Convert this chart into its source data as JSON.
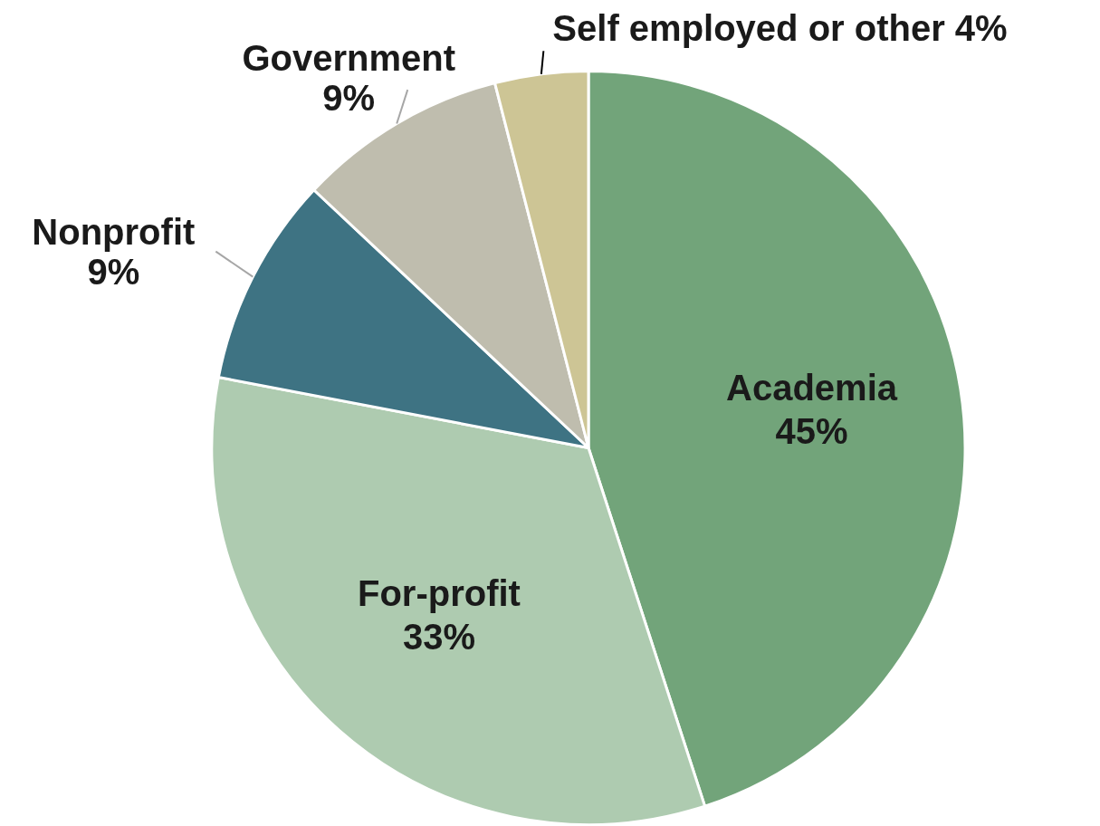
{
  "chart_data": {
    "type": "pie",
    "categories": [
      "Academia",
      "For-profit",
      "Nonprofit",
      "Government",
      "Self employed or other"
    ],
    "values": [
      45,
      33,
      9,
      9,
      4
    ],
    "value_labels": [
      "45%",
      "33%",
      "9%",
      "9%",
      "4%"
    ],
    "colors": [
      "#72a47a",
      "#aecbb0",
      "#3e7383",
      "#bfbdae",
      "#cdc595"
    ],
    "legend": false
  }
}
